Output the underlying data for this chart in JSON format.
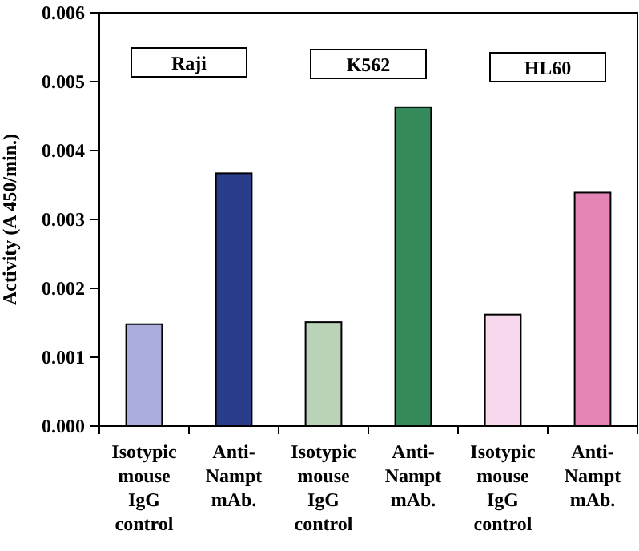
{
  "chart_data": {
    "type": "bar",
    "ylabel": "Activity (A 450/min.)",
    "categories": [
      "Isotypic mouse IgG control",
      "Anti-Nampt mAb.",
      "Isotypic mouse IgG control",
      "Anti-Nampt mAb.",
      "Isotypic mouse IgG control",
      "Anti-Nampt mAb."
    ],
    "values": [
      0.00148,
      0.00367,
      0.00151,
      0.00463,
      0.00162,
      0.00339
    ],
    "colors": [
      "#a9acdc",
      "#2a3d8c",
      "#b9d2b8",
      "#348a5a",
      "#f8d8ec",
      "#e484b4"
    ],
    "ylim": [
      0,
      0.006
    ],
    "yticks": [
      {
        "value": 0,
        "label": "0.000"
      },
      {
        "value": 0.001,
        "label": "0.001"
      },
      {
        "value": 0.002,
        "label": "0.002"
      },
      {
        "value": 0.003,
        "label": "0.003"
      },
      {
        "value": 0.004,
        "label": "0.004"
      },
      {
        "value": 0.005,
        "label": "0.005"
      },
      {
        "value": 0.006,
        "label": "0.006"
      }
    ],
    "annotations": [
      "Raji",
      "K562",
      "HL60"
    ]
  }
}
